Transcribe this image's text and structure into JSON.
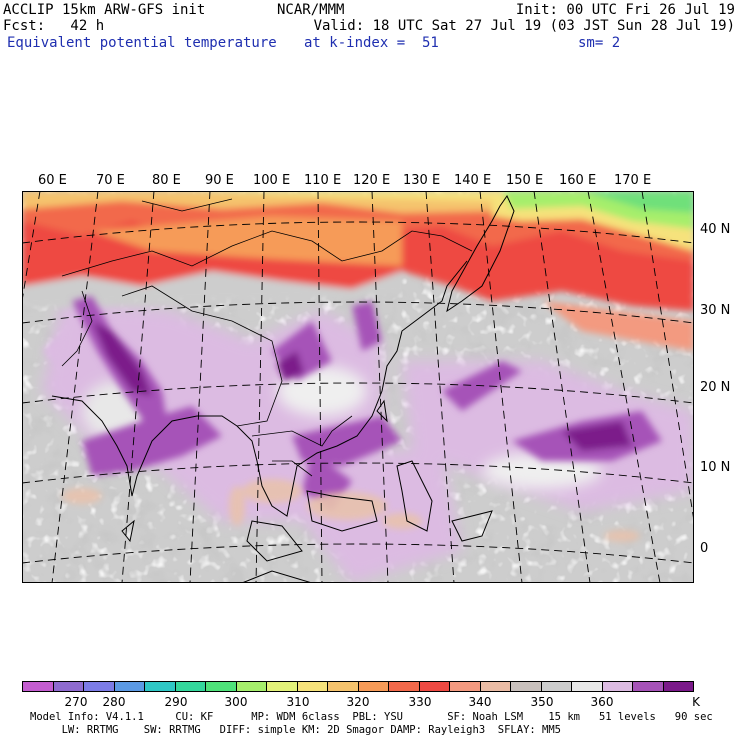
{
  "header": {
    "model": "ACCLIP 15km ARW-GFS init",
    "org": "NCAR/MMM",
    "init": "Init: 00 UTC Fri 26 Jul 19",
    "fcst": "Fcst:   42 h",
    "valid": "Valid: 18 UTC Sat 27 Jul 19 (03 JST Sun 28 Jul 19)",
    "field": "Equivalent potential temperature",
    "level": "at k-index =  51",
    "smooth": "sm= 2"
  },
  "lon_labels": [
    "60 E",
    "70 E",
    "80 E",
    "90 E",
    "100 E",
    "110 E",
    "120 E",
    "130 E",
    "140 E",
    "150 E",
    "160 E",
    "170 E"
  ],
  "lat_labels": [
    "40 N",
    "30 N",
    "20 N",
    "10 N",
    "0"
  ],
  "colorbar": {
    "colors": [
      "#c45dd0",
      "#8f6bcf",
      "#7c7ce6",
      "#5c9ae4",
      "#2fc7c5",
      "#34d79c",
      "#4fe27a",
      "#a6ee6c",
      "#e3f27a",
      "#f6e27b",
      "#f5c36d",
      "#f69b58",
      "#f2694b",
      "#ee4a43",
      "#f39a80",
      "#eabca5",
      "#c9c1bd",
      "#cdcdcd",
      "#e8e8e8",
      "#dcbbe2",
      "#a653b8",
      "#7b1a8a"
    ],
    "ticks": [
      "270",
      "280",
      "290",
      "300",
      "310",
      "320",
      "330",
      "340",
      "350",
      "360",
      "K"
    ]
  },
  "footer": {
    "line1": "Model Info: V4.1.1     CU: KF      MP: WDM 6class  PBL: YSU       SF: Noah LSM    15 km   51 levels   90 sec",
    "line2": "     LW: RRTMG    SW: RRTMG   DIFF: simple KM: 2D Smagor DAMP: Rayleigh3  SFLAY: MM5"
  }
}
